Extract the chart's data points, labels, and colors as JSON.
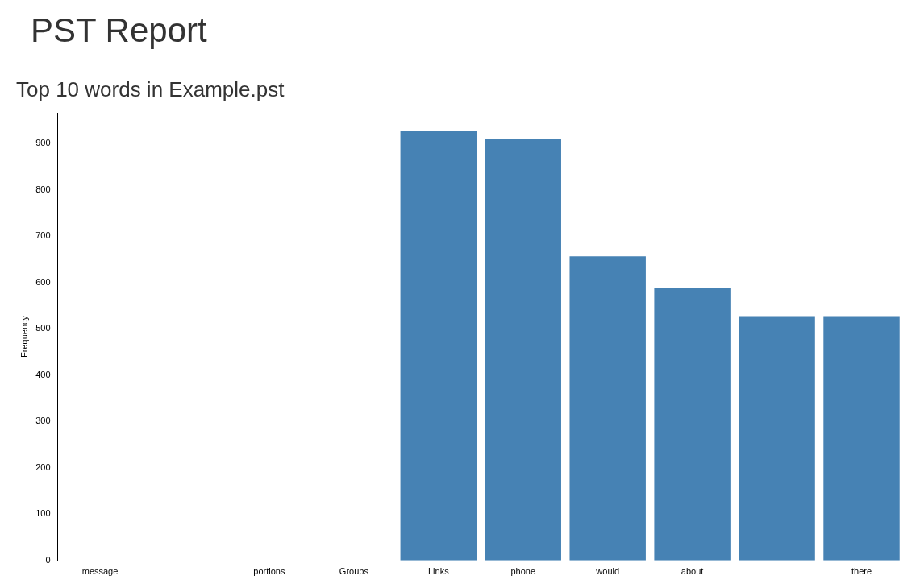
{
  "chart_data": {
    "type": "bar",
    "title": "PST Report",
    "subtitle": "Top 10 words in Example.pst",
    "ylabel": "Frequency",
    "categories": [
      "message",
      null,
      "portions",
      "Groups",
      "Links",
      "phone",
      "would",
      "about",
      null,
      "there"
    ],
    "values": [
      null,
      null,
      null,
      null,
      926,
      909,
      656,
      588,
      527,
      527
    ],
    "color": "#4682b4",
    "ylim": [
      0,
      966
    ],
    "yticks": [
      0,
      100,
      200,
      300,
      400,
      500,
      600,
      700,
      800,
      900
    ],
    "grid": false,
    "legend": false
  }
}
